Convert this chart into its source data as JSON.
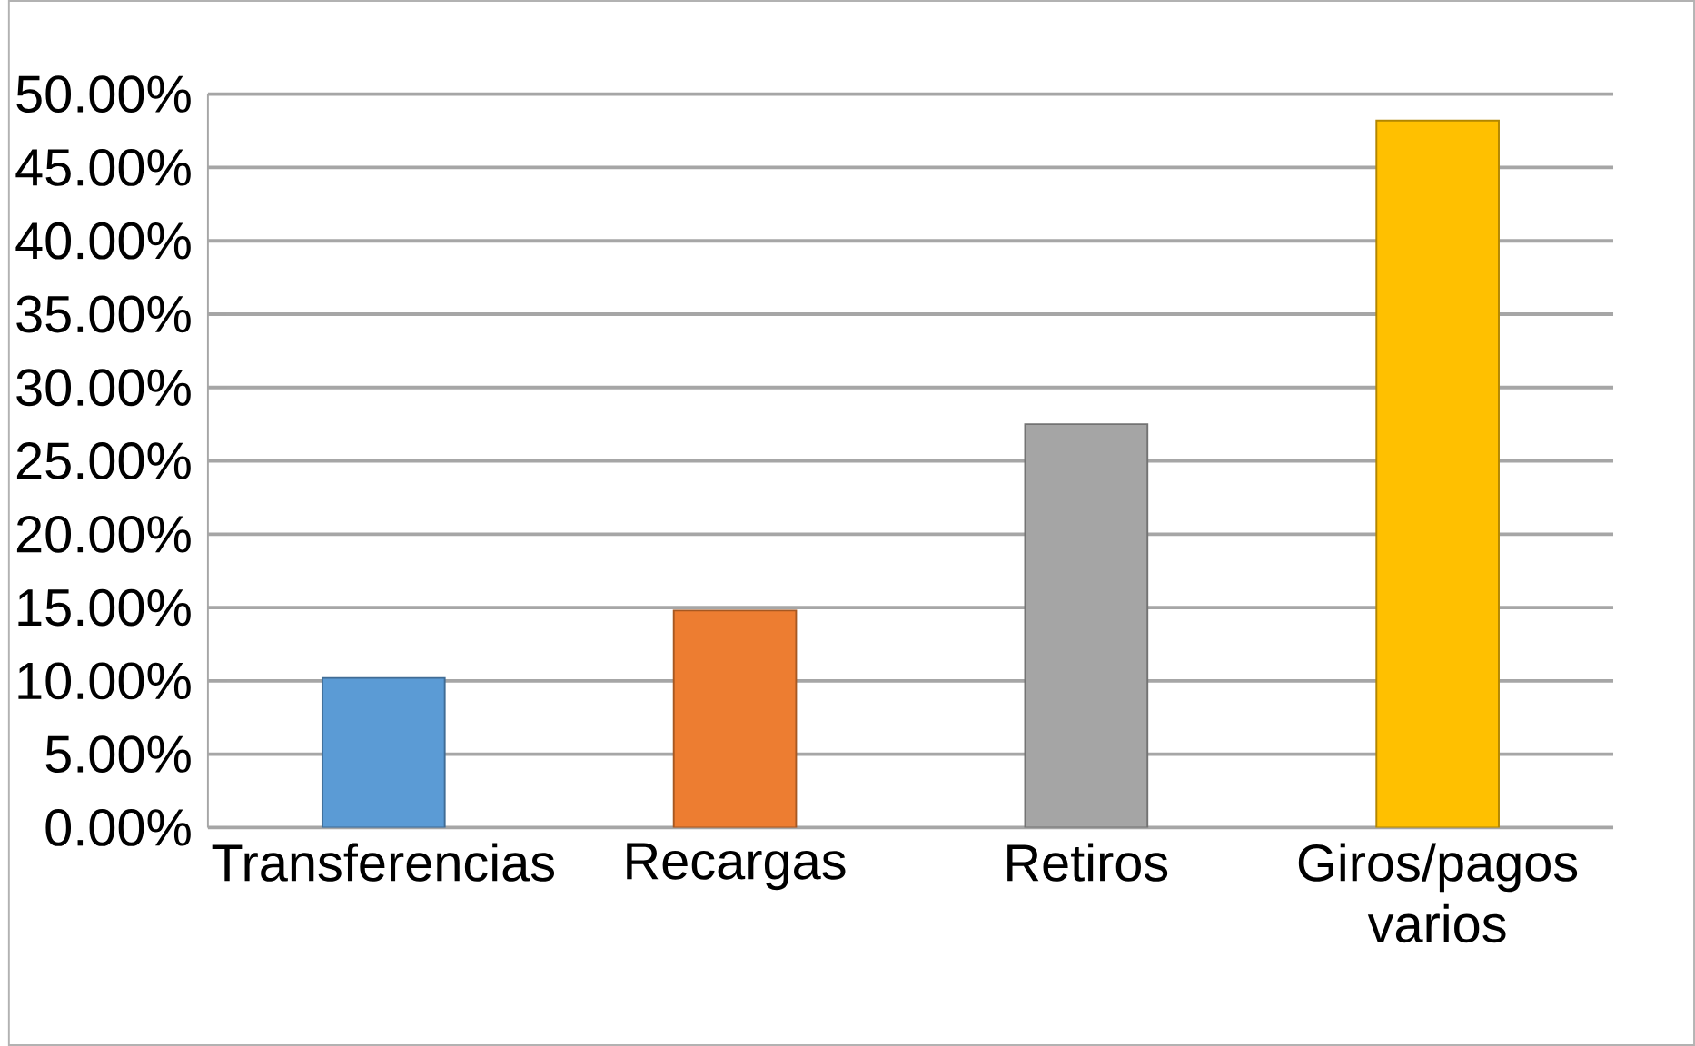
{
  "chart_data": {
    "type": "bar",
    "categories": [
      "Transferencias",
      "Recargas",
      "Retiros",
      "Giros/pagos varios"
    ],
    "values": [
      10.2,
      14.8,
      27.5,
      48.2
    ],
    "colors": [
      "#5b9bd5",
      "#ed7d31",
      "#a5a5a5",
      "#ffc000"
    ],
    "ylim": [
      0,
      50
    ],
    "yticks": [
      {
        "value": 0,
        "label": "0.00%"
      },
      {
        "value": 5,
        "label": "5.00%"
      },
      {
        "value": 10,
        "label": "10.00%"
      },
      {
        "value": 15,
        "label": "15.00%"
      },
      {
        "value": 20,
        "label": "20.00%"
      },
      {
        "value": 25,
        "label": "25.00%"
      },
      {
        "value": 30,
        "label": "30.00%"
      },
      {
        "value": 35,
        "label": "35.00%"
      },
      {
        "value": 40,
        "label": "40.00%"
      },
      {
        "value": 45,
        "label": "45.00%"
      },
      {
        "value": 50,
        "label": "50.00%"
      }
    ],
    "grid": "y"
  }
}
